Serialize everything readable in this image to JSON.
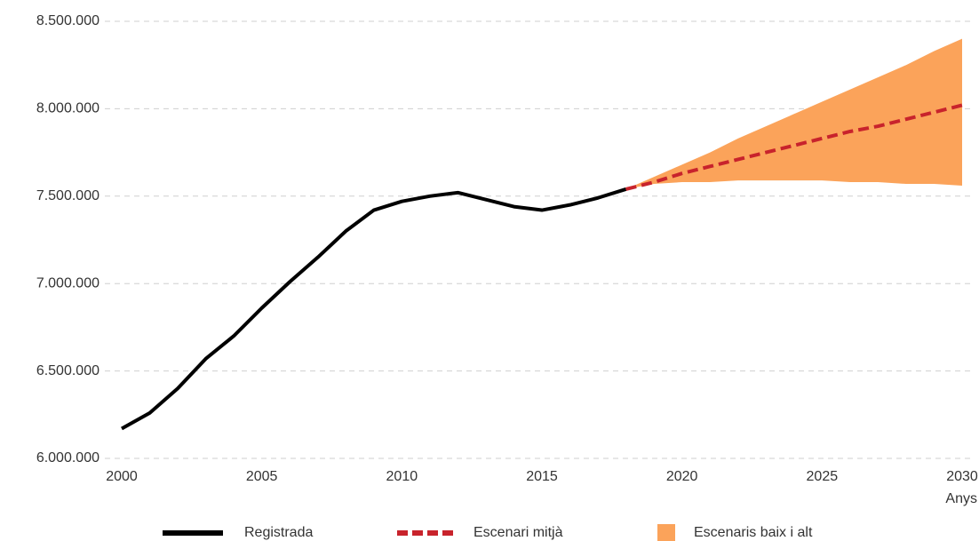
{
  "chart_data": {
    "type": "line",
    "x": [
      2000,
      2001,
      2002,
      2003,
      2004,
      2005,
      2006,
      2007,
      2008,
      2009,
      2010,
      2011,
      2012,
      2013,
      2014,
      2015,
      2016,
      2017,
      2018,
      2019,
      2020,
      2021,
      2022,
      2023,
      2024,
      2025,
      2026,
      2027,
      2028,
      2029,
      2030
    ],
    "xlabel": "Anys",
    "xlim": [
      2000,
      2030
    ],
    "xticks": [
      2000,
      2005,
      2010,
      2015,
      2020,
      2025,
      2030
    ],
    "ylim": [
      6000000,
      8500000
    ],
    "yticks": [
      {
        "value": 6000000,
        "label": "6.000.000"
      },
      {
        "value": 6500000,
        "label": "6.500.000"
      },
      {
        "value": 7000000,
        "label": "7.000.000"
      },
      {
        "value": 7500000,
        "label": "7.500.000"
      },
      {
        "value": 8000000,
        "label": "8.000.000"
      },
      {
        "value": 8500000,
        "label": "8.500.000"
      }
    ],
    "grid": true,
    "series": [
      {
        "name": "Registrada",
        "color": "#000000",
        "style": "solid",
        "values": [
          6170000,
          6260000,
          6400000,
          6570000,
          6700000,
          6860000,
          7010000,
          7150000,
          7300000,
          7420000,
          7470000,
          7500000,
          7520000,
          7480000,
          7440000,
          7420000,
          7450000,
          7490000,
          7540000,
          null,
          null,
          null,
          null,
          null,
          null,
          null,
          null,
          null,
          null,
          null,
          null
        ]
      },
      {
        "name": "Escenari mitjà",
        "color": "#c8232c",
        "style": "dashed",
        "values": [
          null,
          null,
          null,
          null,
          null,
          null,
          null,
          null,
          null,
          null,
          null,
          null,
          null,
          null,
          null,
          null,
          null,
          null,
          7540000,
          7580000,
          7630000,
          7670000,
          7710000,
          7750000,
          7790000,
          7830000,
          7870000,
          7900000,
          7940000,
          7980000,
          8020000
        ]
      }
    ],
    "band": {
      "name": "Escenaris baix i alt",
      "color": "#fba35a",
      "low": [
        null,
        null,
        null,
        null,
        null,
        null,
        null,
        null,
        null,
        null,
        null,
        null,
        null,
        null,
        null,
        null,
        null,
        null,
        7540000,
        7570000,
        7580000,
        7580000,
        7590000,
        7590000,
        7590000,
        7590000,
        7580000,
        7580000,
        7570000,
        7570000,
        7560000
      ],
      "high": [
        null,
        null,
        null,
        null,
        null,
        null,
        null,
        null,
        null,
        null,
        null,
        null,
        null,
        null,
        null,
        null,
        null,
        null,
        7540000,
        7610000,
        7680000,
        7750000,
        7830000,
        7900000,
        7970000,
        8040000,
        8110000,
        8180000,
        8250000,
        8330000,
        8400000
      ]
    }
  }
}
